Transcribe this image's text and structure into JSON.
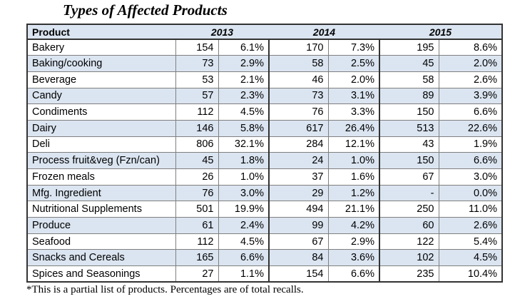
{
  "title": "Types of Affected Products",
  "header": {
    "product": "Product",
    "years": [
      "2013",
      "2014",
      "2015"
    ]
  },
  "rows": [
    {
      "name": "Bakery",
      "c2013": "154",
      "p2013": "6.1%",
      "c2014": "170",
      "p2014": "7.3%",
      "c2015": "195",
      "p2015": "8.6%"
    },
    {
      "name": "Baking/cooking",
      "c2013": "73",
      "p2013": "2.9%",
      "c2014": "58",
      "p2014": "2.5%",
      "c2015": "45",
      "p2015": "2.0%"
    },
    {
      "name": "Beverage",
      "c2013": "53",
      "p2013": "2.1%",
      "c2014": "46",
      "p2014": "2.0%",
      "c2015": "58",
      "p2015": "2.6%"
    },
    {
      "name": "Candy",
      "c2013": "57",
      "p2013": "2.3%",
      "c2014": "73",
      "p2014": "3.1%",
      "c2015": "89",
      "p2015": "3.9%"
    },
    {
      "name": "Condiments",
      "c2013": "112",
      "p2013": "4.5%",
      "c2014": "76",
      "p2014": "3.3%",
      "c2015": "150",
      "p2015": "6.6%"
    },
    {
      "name": "Dairy",
      "c2013": "146",
      "p2013": "5.8%",
      "c2014": "617",
      "p2014": "26.4%",
      "c2015": "513",
      "p2015": "22.6%"
    },
    {
      "name": "Deli",
      "c2013": "806",
      "p2013": "32.1%",
      "c2014": "284",
      "p2014": "12.1%",
      "c2015": "43",
      "p2015": "1.9%"
    },
    {
      "name": "Process fruit&veg (Fzn/can)",
      "c2013": "45",
      "p2013": "1.8%",
      "c2014": "24",
      "p2014": "1.0%",
      "c2015": "150",
      "p2015": "6.6%"
    },
    {
      "name": "Frozen meals",
      "c2013": "26",
      "p2013": "1.0%",
      "c2014": "37",
      "p2014": "1.6%",
      "c2015": "67",
      "p2015": "3.0%"
    },
    {
      "name": "Mfg. Ingredient",
      "c2013": "76",
      "p2013": "3.0%",
      "c2014": "29",
      "p2014": "1.2%",
      "c2015": "-",
      "p2015": "0.0%"
    },
    {
      "name": "Nutritional Supplements",
      "c2013": "501",
      "p2013": "19.9%",
      "c2014": "494",
      "p2014": "21.1%",
      "c2015": "250",
      "p2015": "11.0%"
    },
    {
      "name": "Produce",
      "c2013": "61",
      "p2013": "2.4%",
      "c2014": "99",
      "p2014": "4.2%",
      "c2015": "60",
      "p2015": "2.6%"
    },
    {
      "name": "Seafood",
      "c2013": "112",
      "p2013": "4.5%",
      "c2014": "67",
      "p2014": "2.9%",
      "c2015": "122",
      "p2015": "5.4%"
    },
    {
      "name": "Snacks and Cereals",
      "c2013": "165",
      "p2013": "6.6%",
      "c2014": "84",
      "p2014": "3.6%",
      "c2015": "102",
      "p2015": "4.5%"
    },
    {
      "name": "Spices and Seasonings",
      "c2013": "27",
      "p2013": "1.1%",
      "c2014": "154",
      "p2014": "6.6%",
      "c2015": "235",
      "p2015": "10.4%"
    }
  ],
  "footnote": "*This is a partial list of products.  Percentages are of total recalls."
}
